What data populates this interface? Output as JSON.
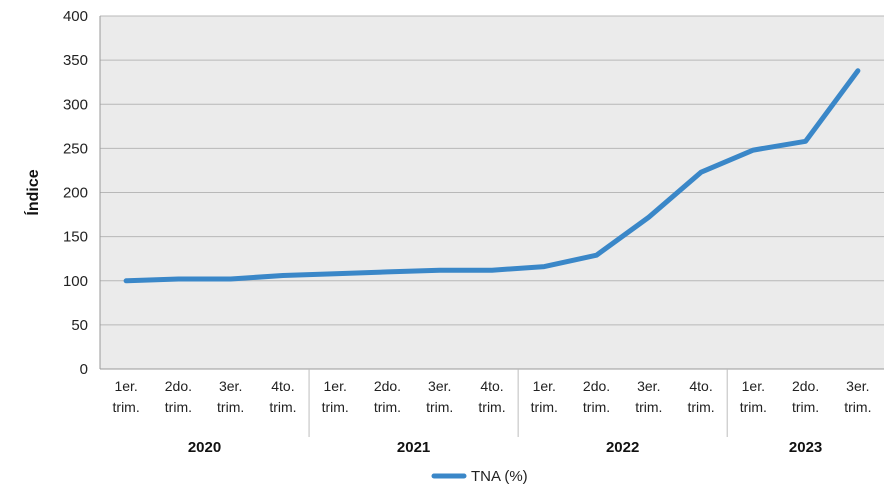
{
  "chart_data": {
    "type": "line",
    "ylabel": "Índice",
    "ylim": [
      0,
      400
    ],
    "yticks": [
      0,
      50,
      100,
      150,
      200,
      250,
      300,
      350,
      400
    ],
    "grid": true,
    "legend_position": "bottom",
    "groups": [
      {
        "label": "2020",
        "categories": [
          [
            "1er.",
            "trim."
          ],
          [
            "2do.",
            "trim."
          ],
          [
            "3er.",
            "trim."
          ],
          [
            "4to.",
            "trim."
          ]
        ]
      },
      {
        "label": "2021",
        "categories": [
          [
            "1er.",
            "trim."
          ],
          [
            "2do.",
            "trim."
          ],
          [
            "3er.",
            "trim."
          ],
          [
            "4to.",
            "trim."
          ]
        ]
      },
      {
        "label": "2022",
        "categories": [
          [
            "1er.",
            "trim."
          ],
          [
            "2do.",
            "trim."
          ],
          [
            "3er.",
            "trim."
          ],
          [
            "4to.",
            "trim."
          ]
        ]
      },
      {
        "label": "2023",
        "categories": [
          [
            "1er.",
            "trim."
          ],
          [
            "2do.",
            "trim."
          ],
          [
            "3er.",
            "trim."
          ]
        ]
      }
    ],
    "series": [
      {
        "name": "TNA (%)",
        "color": "#3a87c8",
        "values": [
          100,
          102,
          102,
          106,
          108,
          110,
          112,
          112,
          116,
          129,
          172,
          223,
          248,
          258,
          338
        ]
      }
    ],
    "colors": {
      "plot_background": "#ebebeb",
      "gridline": "#b8b8b8",
      "axis": "#9a9a9a",
      "separator": "#bdbdbd"
    }
  }
}
